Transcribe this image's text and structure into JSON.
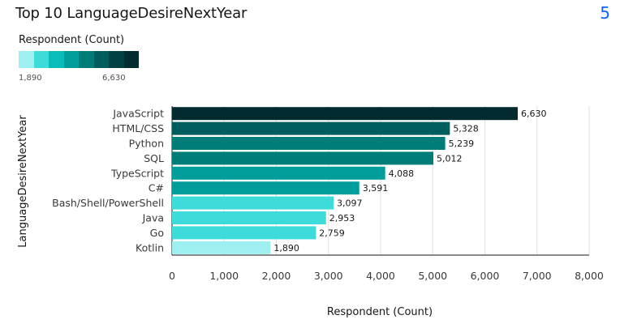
{
  "header": {
    "title": "Top 10 LanguageDesireNextYear",
    "page_number": "5"
  },
  "legend": {
    "title": "Respondent (Count)",
    "min_label": "1,890",
    "max_label": "6,630",
    "colors": [
      "#9ef0f0",
      "#3ddbd9",
      "#08bdba",
      "#009d9a",
      "#007d79",
      "#005d5d",
      "#004144",
      "#022b30"
    ]
  },
  "chart_data": {
    "type": "bar",
    "orientation": "horizontal",
    "categories": [
      "JavaScript",
      "HTML/CSS",
      "Python",
      "SQL",
      "TypeScript",
      "C#",
      "Bash/Shell/PowerShell",
      "Java",
      "Go",
      "Kotlin"
    ],
    "values": [
      6630,
      5328,
      5239,
      5012,
      4088,
      3591,
      3097,
      2953,
      2759,
      1890
    ],
    "value_labels": [
      "6,630",
      "5,328",
      "5,239",
      "5,012",
      "4,088",
      "3,591",
      "3,097",
      "2,953",
      "2,759",
      "1,890"
    ],
    "bar_colors": [
      "#022b30",
      "#005d5d",
      "#007d79",
      "#007d79",
      "#009d9a",
      "#009d9a",
      "#3ddbd9",
      "#3ddbd9",
      "#3ddbd9",
      "#9ef0f0"
    ],
    "xlabel": "Respondent (Count)",
    "ylabel": "LanguageDesireNextYear",
    "xlim": [
      0,
      8000
    ],
    "x_ticks": [
      0,
      1000,
      2000,
      3000,
      4000,
      5000,
      6000,
      7000,
      8000
    ],
    "x_tick_labels": [
      "0",
      "1,000",
      "2,000",
      "3,000",
      "4,000",
      "5,000",
      "6,000",
      "7,000",
      "8,000"
    ],
    "grid": true
  }
}
